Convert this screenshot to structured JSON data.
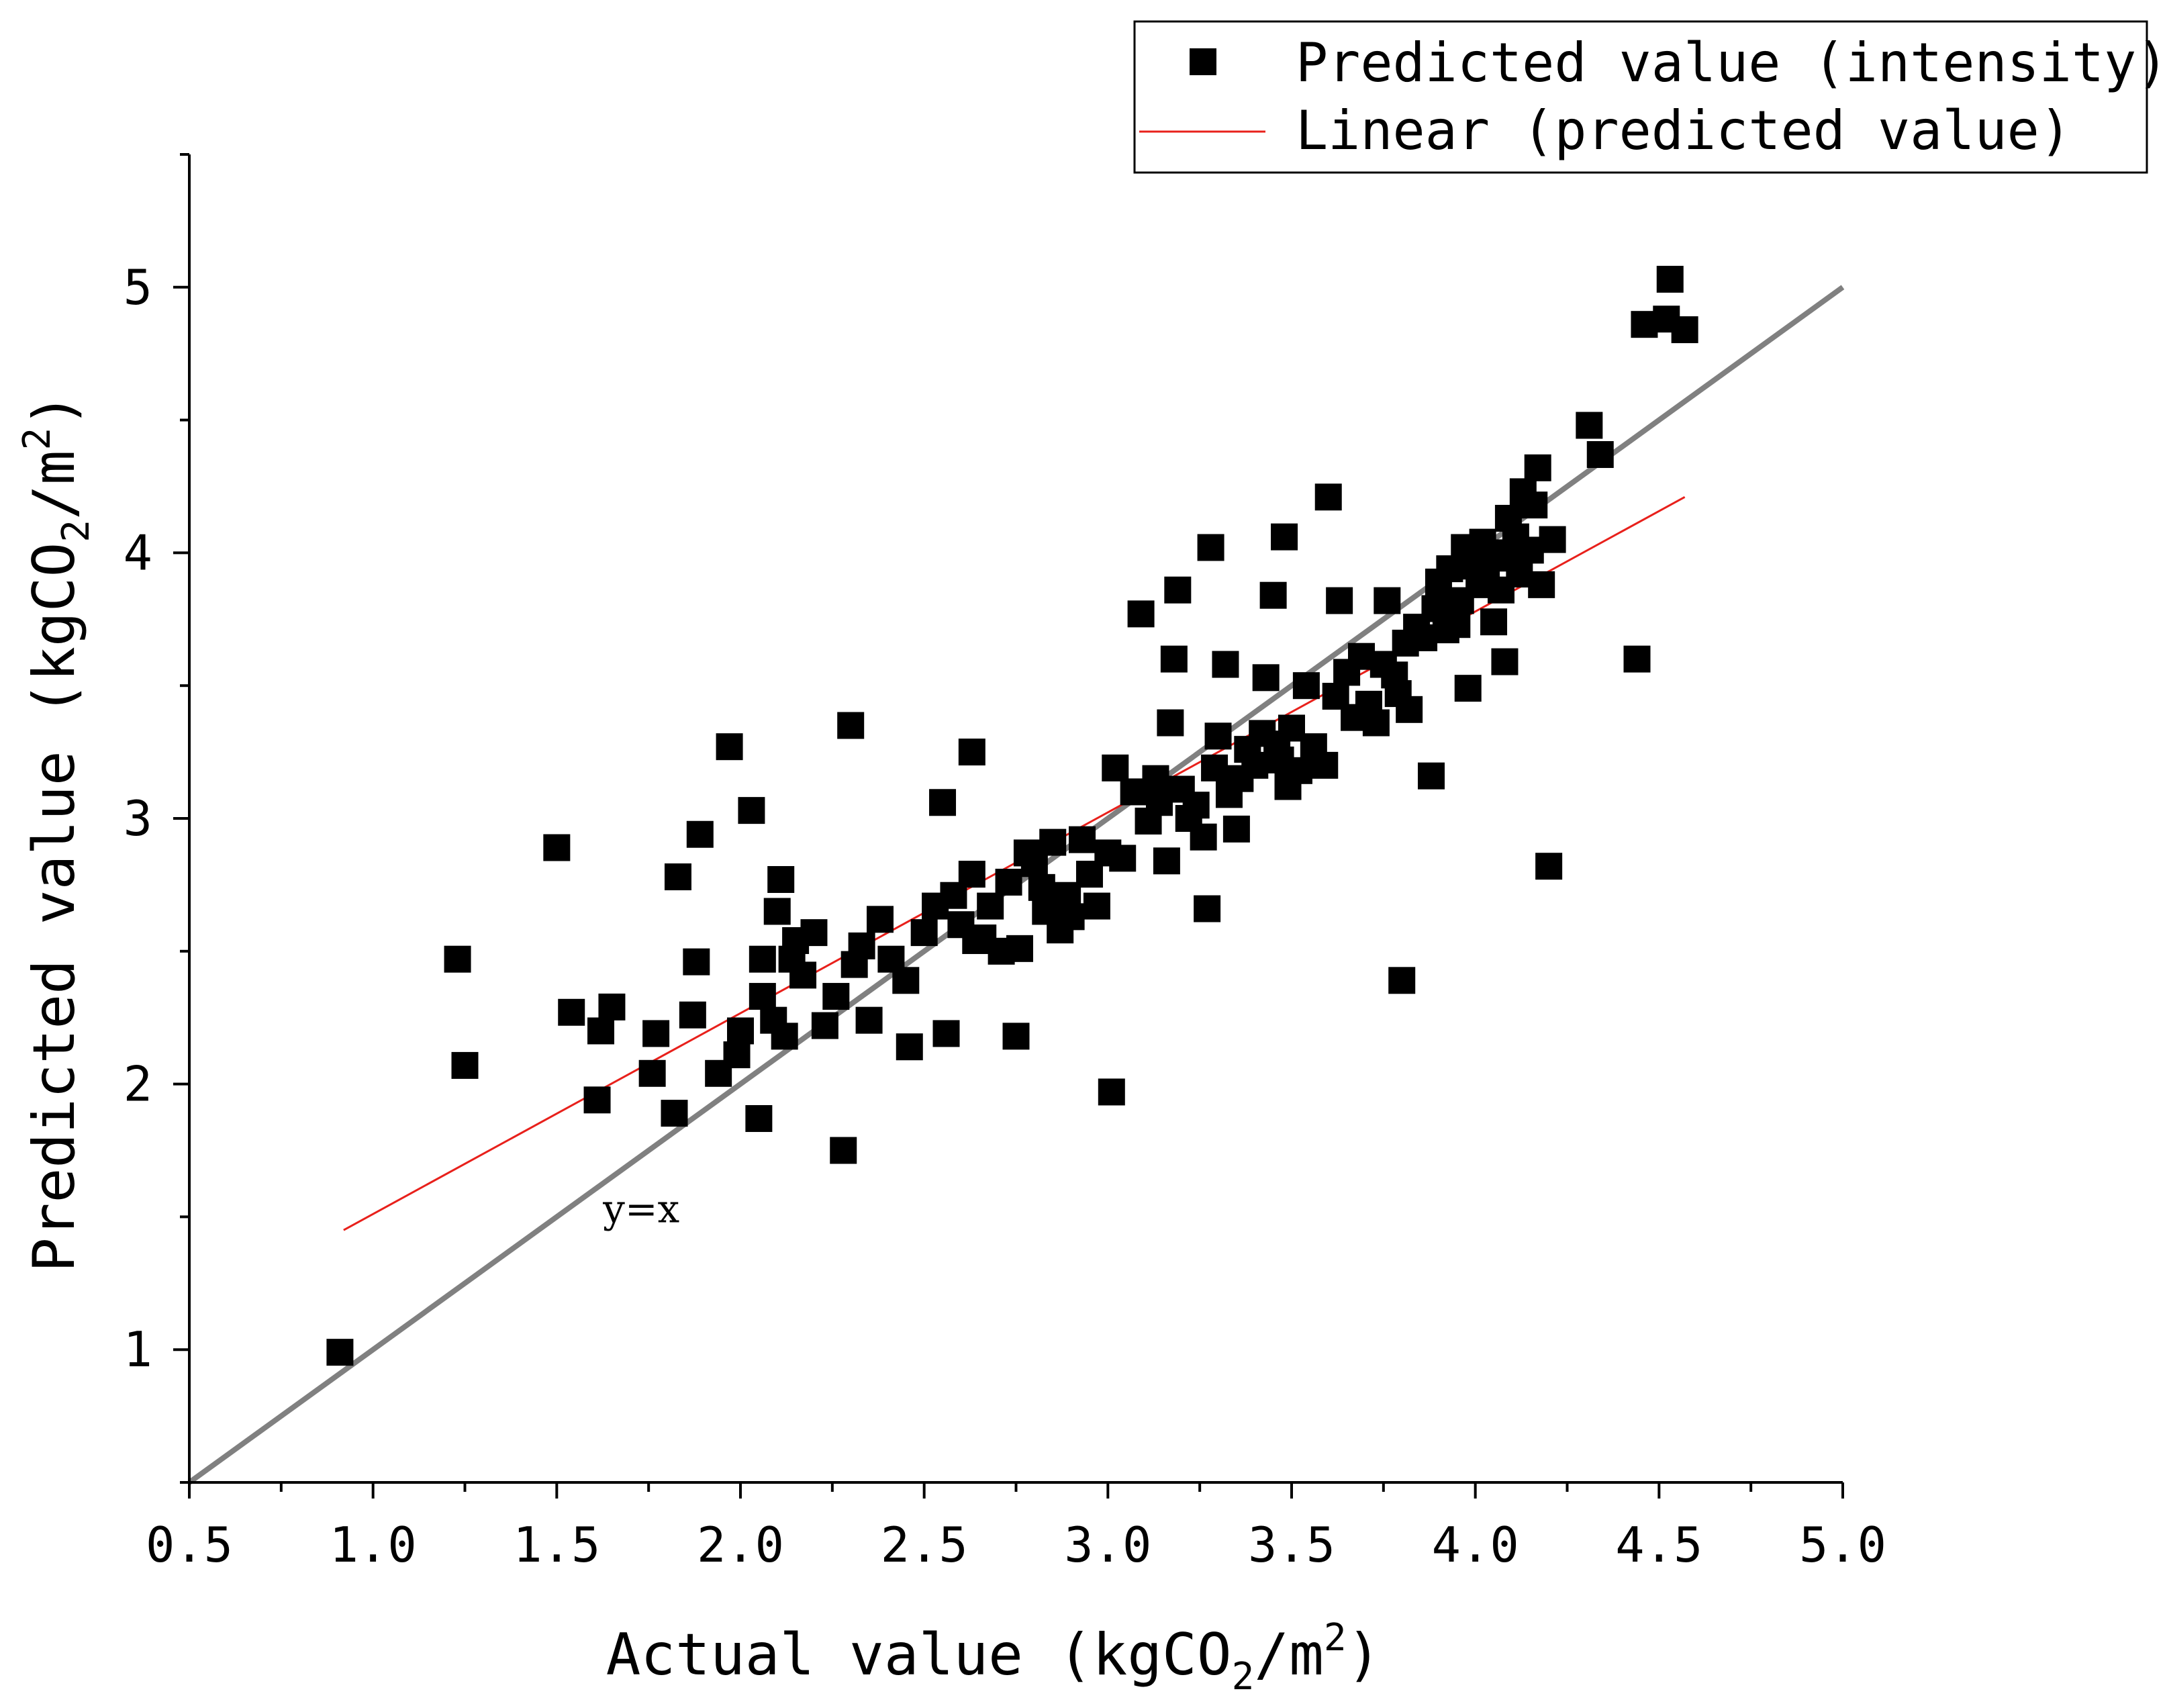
{
  "chart_data": {
    "type": "scatter",
    "xlabel": "Actual value (kgCO₂/m²)",
    "ylabel": "Predicted value (kgCO₂/m²)",
    "xlabel_parts": {
      "pre": "Actual value (kgCO",
      "sub": "2",
      "mid": "/m",
      "sup": "2",
      "post": ")"
    },
    "ylabel_parts": {
      "pre": "Predicted value (kgCO",
      "sub": "2",
      "mid": "/m",
      "sup": "2",
      "post": ")"
    },
    "xlim": [
      0.5,
      5.0
    ],
    "ylim": [
      0.5,
      5.5
    ],
    "x_ticks": [
      0.5,
      1.0,
      1.5,
      2.0,
      2.5,
      3.0,
      3.5,
      4.0,
      4.5,
      5.0
    ],
    "x_tick_labels": [
      "0.5",
      "1.0",
      "1.5",
      "2.0",
      "2.5",
      "3.0",
      "3.5",
      "4.0",
      "4.5",
      "5.0"
    ],
    "y_ticks": [
      1,
      2,
      3,
      4,
      5
    ],
    "y_tick_labels": [
      "1",
      "2",
      "3",
      "4",
      "5"
    ],
    "legend": {
      "position": "top-right",
      "entries": [
        {
          "label": "Predicted value (intensity)",
          "marker": "square",
          "color": "#000000"
        },
        {
          "label": "Linear (predicted value)",
          "marker": "line",
          "color": "#e8201b"
        }
      ]
    },
    "annotations": [
      {
        "text": "y=x",
        "x": 1.73,
        "y": 1.53
      }
    ],
    "reference_line": {
      "name": "y=x",
      "x": [
        0.5,
        5.0
      ],
      "y": [
        0.5,
        5.0
      ],
      "color": "#808080"
    },
    "fit_line": {
      "name": "Linear (predicted value)",
      "x": [
        0.92,
        4.57
      ],
      "y": [
        1.45,
        4.21
      ],
      "color": "#e8201b"
    },
    "series": [
      {
        "name": "Predicted value (intensity)",
        "color": "#000000",
        "points": [
          [
            0.91,
            0.99
          ],
          [
            1.23,
            2.47
          ],
          [
            1.25,
            2.07
          ],
          [
            1.5,
            2.89
          ],
          [
            1.54,
            2.27
          ],
          [
            1.61,
            1.94
          ],
          [
            1.62,
            2.2
          ],
          [
            1.65,
            2.29
          ],
          [
            1.76,
            2.04
          ],
          [
            1.77,
            2.19
          ],
          [
            1.82,
            1.89
          ],
          [
            1.83,
            2.78
          ],
          [
            1.87,
            2.26
          ],
          [
            1.88,
            2.46
          ],
          [
            1.89,
            2.94
          ],
          [
            1.94,
            2.04
          ],
          [
            1.97,
            3.27
          ],
          [
            1.99,
            2.11
          ],
          [
            2.0,
            2.2
          ],
          [
            2.03,
            3.03
          ],
          [
            2.05,
            1.87
          ],
          [
            2.06,
            2.33
          ],
          [
            2.06,
            2.47
          ],
          [
            2.09,
            2.24
          ],
          [
            2.1,
            2.65
          ],
          [
            2.11,
            2.77
          ],
          [
            2.12,
            2.18
          ],
          [
            2.14,
            2.47
          ],
          [
            2.15,
            2.54
          ],
          [
            2.17,
            2.41
          ],
          [
            2.2,
            2.57
          ],
          [
            2.23,
            2.22
          ],
          [
            2.26,
            2.33
          ],
          [
            2.28,
            1.75
          ],
          [
            2.3,
            3.35
          ],
          [
            2.31,
            2.45
          ],
          [
            2.33,
            2.52
          ],
          [
            2.35,
            2.24
          ],
          [
            2.38,
            2.62
          ],
          [
            2.41,
            2.47
          ],
          [
            2.45,
            2.39
          ],
          [
            2.46,
            2.14
          ],
          [
            2.5,
            2.57
          ],
          [
            2.53,
            2.67
          ],
          [
            2.55,
            3.06
          ],
          [
            2.56,
            2.19
          ],
          [
            2.58,
            2.71
          ],
          [
            2.6,
            2.6
          ],
          [
            2.63,
            3.25
          ],
          [
            2.63,
            2.79
          ],
          [
            2.64,
            2.54
          ],
          [
            2.66,
            2.55
          ],
          [
            2.68,
            2.67
          ],
          [
            2.71,
            2.5
          ],
          [
            2.73,
            2.76
          ],
          [
            2.75,
            2.18
          ],
          [
            2.76,
            2.51
          ],
          [
            2.78,
            2.87
          ],
          [
            2.8,
            2.83
          ],
          [
            2.82,
            2.74
          ],
          [
            2.83,
            2.65
          ],
          [
            2.85,
            2.91
          ],
          [
            2.87,
            2.58
          ],
          [
            2.89,
            2.71
          ],
          [
            2.9,
            2.63
          ],
          [
            2.93,
            2.92
          ],
          [
            2.95,
            2.79
          ],
          [
            2.97,
            2.67
          ],
          [
            3.0,
            2.87
          ],
          [
            3.01,
            1.97
          ],
          [
            3.02,
            3.19
          ],
          [
            3.04,
            2.85
          ],
          [
            3.07,
            3.1
          ],
          [
            3.09,
            3.77
          ],
          [
            3.11,
            2.99
          ],
          [
            3.13,
            3.15
          ],
          [
            3.14,
            3.06
          ],
          [
            3.16,
            2.84
          ],
          [
            3.17,
            3.36
          ],
          [
            3.18,
            3.6
          ],
          [
            3.19,
            3.86
          ],
          [
            3.2,
            3.11
          ],
          [
            3.22,
            3.0
          ],
          [
            3.24,
            3.05
          ],
          [
            3.26,
            2.93
          ],
          [
            3.27,
            2.66
          ],
          [
            3.28,
            4.02
          ],
          [
            3.29,
            3.19
          ],
          [
            3.3,
            3.31
          ],
          [
            3.32,
            3.58
          ],
          [
            3.33,
            3.09
          ],
          [
            3.35,
            2.96
          ],
          [
            3.36,
            3.15
          ],
          [
            3.38,
            3.26
          ],
          [
            3.4,
            3.2
          ],
          [
            3.42,
            3.32
          ],
          [
            3.43,
            3.53
          ],
          [
            3.45,
            3.84
          ],
          [
            3.46,
            3.28
          ],
          [
            3.47,
            3.22
          ],
          [
            3.48,
            4.06
          ],
          [
            3.49,
            3.12
          ],
          [
            3.5,
            3.34
          ],
          [
            3.52,
            3.18
          ],
          [
            3.54,
            3.5
          ],
          [
            3.56,
            3.27
          ],
          [
            3.59,
            3.2
          ],
          [
            3.6,
            4.21
          ],
          [
            3.62,
            3.46
          ],
          [
            3.63,
            3.82
          ],
          [
            3.65,
            3.55
          ],
          [
            3.67,
            3.38
          ],
          [
            3.69,
            3.61
          ],
          [
            3.71,
            3.43
          ],
          [
            3.73,
            3.36
          ],
          [
            3.75,
            3.58
          ],
          [
            3.76,
            3.82
          ],
          [
            3.78,
            3.54
          ],
          [
            3.79,
            3.47
          ],
          [
            3.8,
            2.39
          ],
          [
            3.81,
            3.66
          ],
          [
            3.82,
            3.41
          ],
          [
            3.84,
            3.72
          ],
          [
            3.86,
            3.68
          ],
          [
            3.88,
            3.16
          ],
          [
            3.89,
            3.79
          ],
          [
            3.9,
            3.89
          ],
          [
            3.92,
            3.71
          ],
          [
            3.93,
            3.94
          ],
          [
            3.95,
            3.73
          ],
          [
            3.96,
            3.82
          ],
          [
            3.97,
            4.02
          ],
          [
            3.98,
            3.49
          ],
          [
            3.99,
            3.95
          ],
          [
            4.01,
            3.88
          ],
          [
            4.02,
            4.04
          ],
          [
            4.03,
            3.91
          ],
          [
            4.05,
            3.74
          ],
          [
            4.06,
            4.0
          ],
          [
            4.07,
            3.86
          ],
          [
            4.08,
            3.59
          ],
          [
            4.09,
            4.13
          ],
          [
            4.1,
            3.98
          ],
          [
            4.11,
            4.06
          ],
          [
            4.12,
            3.92
          ],
          [
            4.13,
            4.23
          ],
          [
            4.15,
            4.01
          ],
          [
            4.16,
            4.18
          ],
          [
            4.17,
            4.32
          ],
          [
            4.18,
            3.88
          ],
          [
            4.2,
            2.82
          ],
          [
            4.21,
            4.05
          ],
          [
            4.31,
            4.48
          ],
          [
            4.34,
            4.37
          ],
          [
            4.44,
            3.6
          ],
          [
            4.46,
            4.86
          ],
          [
            4.52,
            4.88
          ],
          [
            4.53,
            5.03
          ],
          [
            4.57,
            4.84
          ]
        ]
      }
    ]
  }
}
